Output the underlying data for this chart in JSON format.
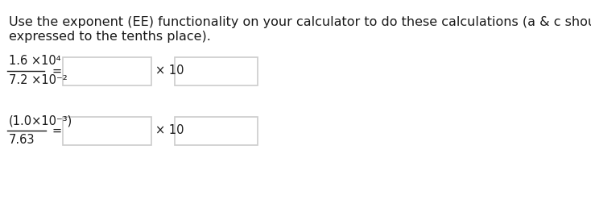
{
  "background_color": "#ffffff",
  "instruction_text_line1": "Use the exponent (EE) functionality on your calculator to do these calculations (a & c should be",
  "instruction_text_line2": "expressed to the tenths place).",
  "row1_numerator": "1.6 ×10⁴",
  "row1_denominator": "7.2 ×10⁻²",
  "row1_x10": "× 10",
  "row2_numerator": "(1.0×10⁻³)",
  "row2_denominator": "7.63",
  "row2_x10": "× 10",
  "font_size_instruction": 11.5,
  "font_size_equation": 10.5,
  "text_color": "#1a1a1a",
  "box_edge_color": "#cccccc",
  "box_face_color": "#ffffff"
}
